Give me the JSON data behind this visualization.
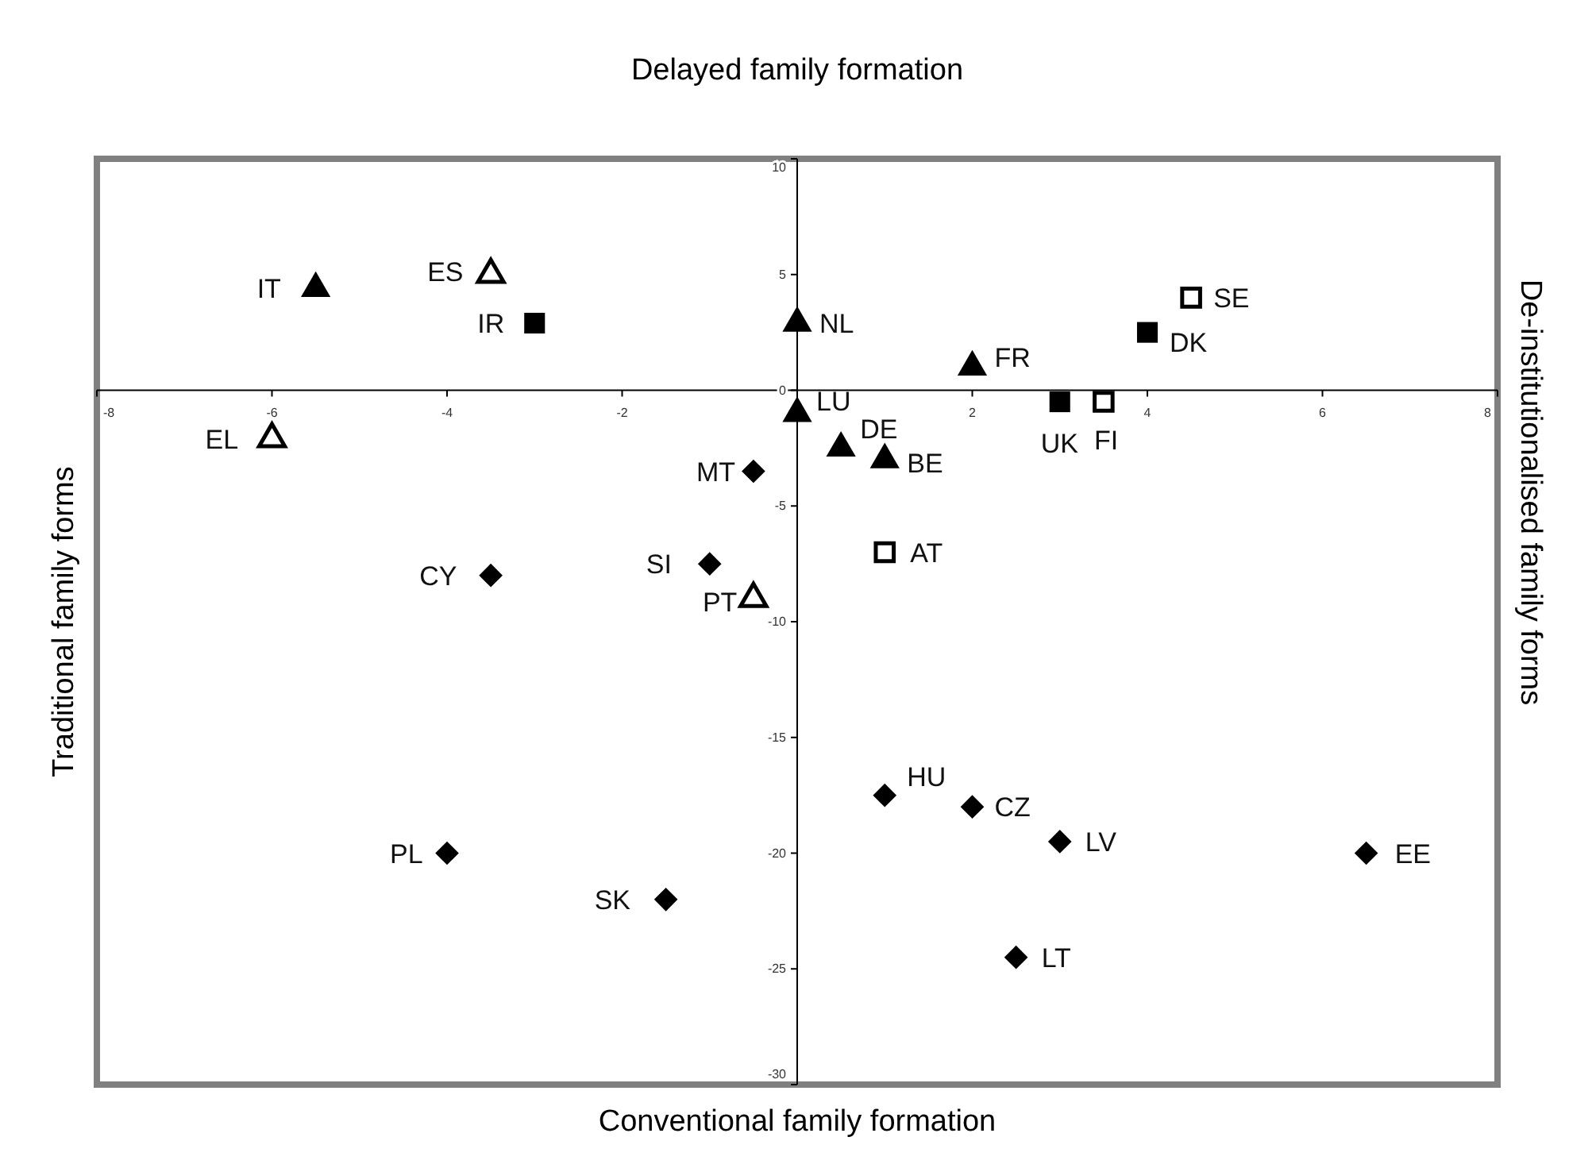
{
  "chart_data": {
    "type": "scatter",
    "title": "Delayed family formation",
    "xlabel": "Conventional family formation",
    "ylabel": "Traditional family forms",
    "y2label": "De-institutionalised family forms",
    "xlim": [
      -8,
      8
    ],
    "xticks": [
      -8,
      -6,
      -4,
      -2,
      2,
      4,
      6,
      8
    ],
    "ylim": [
      -30,
      10
    ],
    "yticks": [
      10,
      5,
      0,
      -5,
      -10,
      -15,
      -20,
      -25,
      -30
    ],
    "grid": false,
    "series": [
      {
        "marker": "triangle",
        "color": "#000000",
        "x": [
          -5.5,
          0,
          0,
          0.5,
          1,
          2
        ],
        "values": [
          4.4,
          2.9,
          -1.0,
          -2.5,
          -3.0,
          1.0
        ]
      },
      {
        "marker": "triangle",
        "color": "#ffffff",
        "x": [
          -3.5,
          -6,
          -0.5
        ],
        "values": [
          5.0,
          -2.1,
          -9.0
        ]
      },
      {
        "marker": "square",
        "color": "#000000",
        "x": [
          -3,
          3,
          4
        ],
        "values": [
          2.9,
          -0.5,
          2.5
        ]
      },
      {
        "marker": "square",
        "color": "#ffffff",
        "x": [
          3.5,
          4.5,
          1
        ],
        "values": [
          -0.5,
          4.0,
          -7.0
        ]
      },
      {
        "marker": "diamond",
        "color": "#000000",
        "x": [
          -0.5,
          -1,
          -3.5,
          1,
          2,
          3,
          6.5,
          -4,
          -1.5,
          2.5
        ],
        "values": [
          -3.5,
          -7.5,
          -8.0,
          -17.5,
          -18.0,
          -19.5,
          -20.0,
          -20.0,
          -22.0,
          -24.5
        ]
      }
    ],
    "annotations": [
      {
        "text": "IT",
        "x": -5.5,
        "y": 4.4
      },
      {
        "text": "NL",
        "x": 0,
        "y": 2.9
      },
      {
        "text": "LU",
        "x": 0,
        "y": -1.0
      },
      {
        "text": "DE",
        "x": 0.5,
        "y": -2.5
      },
      {
        "text": "BE",
        "x": 1,
        "y": -3.0
      },
      {
        "text": "FR",
        "x": 2,
        "y": 1.0
      },
      {
        "text": "ES",
        "x": -3.5,
        "y": 5.0
      },
      {
        "text": "EL",
        "x": -6,
        "y": -2.1
      },
      {
        "text": "PT",
        "x": -0.5,
        "y": -9.0
      },
      {
        "text": "IR",
        "x": -3,
        "y": 2.9
      },
      {
        "text": "UK",
        "x": 3,
        "y": -0.5
      },
      {
        "text": "DK",
        "x": 4,
        "y": 2.5
      },
      {
        "text": "FI",
        "x": 3.5,
        "y": -0.5
      },
      {
        "text": "SE",
        "x": 4.5,
        "y": 4.0
      },
      {
        "text": "AT",
        "x": 1,
        "y": -7.0
      },
      {
        "text": "MT",
        "x": -0.5,
        "y": -3.5
      },
      {
        "text": "SI",
        "x": -1,
        "y": -7.5
      },
      {
        "text": "CY",
        "x": -3.5,
        "y": -8.0
      },
      {
        "text": "HU",
        "x": 1,
        "y": -17.5
      },
      {
        "text": "CZ",
        "x": 2,
        "y": -18.0
      },
      {
        "text": "LV",
        "x": 3,
        "y": -19.5
      },
      {
        "text": "EE",
        "x": 6.5,
        "y": -20.0
      },
      {
        "text": "PL",
        "x": -4,
        "y": -20.0
      },
      {
        "text": "SK",
        "x": -1.5,
        "y": -22.0
      },
      {
        "text": "LT",
        "x": 2.5,
        "y": -24.5
      }
    ]
  }
}
